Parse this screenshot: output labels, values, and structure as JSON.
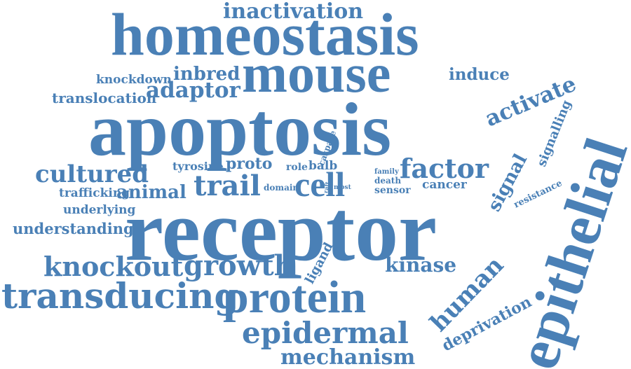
{
  "color": "#4a80b6",
  "words": {
    "inactivation": "inactivation",
    "homeostasis": "homeostasis",
    "mouse": "mouse",
    "knockdown": "knockdown",
    "inbred": "inbred",
    "induce": "induce",
    "adaptor": "adaptor",
    "translocation": "translocation",
    "activate": "activate",
    "apoptosis": "apoptosis",
    "epithelial": "epithelial",
    "signalling": "signalling",
    "caspase": "caspase",
    "tyrosine": "tyrosine",
    "proto": "proto",
    "role": "role",
    "balb": "balb",
    "family": "family",
    "death": "death",
    "factor": "factor",
    "cultured": "cultured",
    "cell": "cell",
    "trail": "trail",
    "signal": "signal",
    "resistance": "resistance",
    "trafficking": "trafficking",
    "animal": "animal",
    "domain": "domain",
    "raft": "raft",
    "most": "most",
    "sensor": "sensor",
    "cancer": "cancer",
    "underlying": "underlying",
    "receptor": "receptor",
    "understanding": "understanding",
    "ligand": "ligand",
    "knockout": "knockout",
    "growth": "growth",
    "kinase": "kinase",
    "human": "human",
    "transducing": "transducing",
    "protein": "protein",
    "deprivation": "deprivation",
    "epidermal": "epidermal",
    "mechanism": "mechanism"
  }
}
